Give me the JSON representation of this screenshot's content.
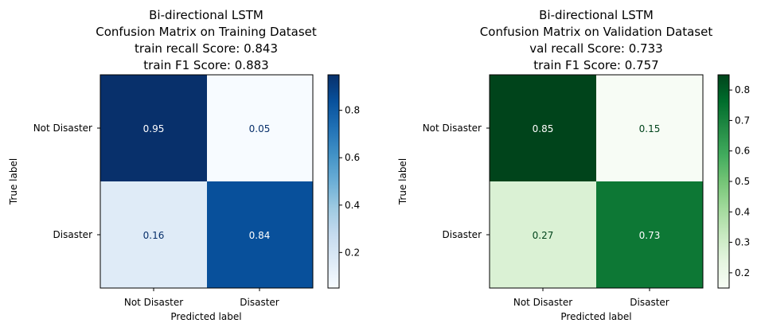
{
  "chart_data": [
    {
      "type": "heatmap",
      "title": [
        "Bi-directional LSTM",
        "Confusion Matrix on Training Dataset",
        "train recall Score: 0.843",
        "train F1 Score: 0.883"
      ],
      "xlabel": "Predicted label",
      "ylabel": "True label",
      "x_categories": [
        "Not Disaster",
        "Disaster"
      ],
      "y_categories": [
        "Not Disaster",
        "Disaster"
      ],
      "values": [
        [
          0.95,
          0.05
        ],
        [
          0.16,
          0.84
        ]
      ],
      "cell_labels": [
        [
          "0.95",
          "0.05"
        ],
        [
          "0.16",
          "0.84"
        ]
      ],
      "colormap": "Blues",
      "colorbar": {
        "range": [
          0.05,
          0.95
        ],
        "ticks": [
          0.2,
          0.4,
          0.6,
          0.8
        ],
        "tick_labels": [
          "0.2",
          "0.4",
          "0.6",
          "0.8"
        ]
      }
    },
    {
      "type": "heatmap",
      "title": [
        "Bi-directional LSTM",
        "Confusion Matrix on Validation Dataset",
        "val recall Score: 0.733",
        "train F1 Score: 0.757"
      ],
      "xlabel": "Predicted label",
      "ylabel": "True label",
      "x_categories": [
        "Not Disaster",
        "Disaster"
      ],
      "y_categories": [
        "Not Disaster",
        "Disaster"
      ],
      "values": [
        [
          0.85,
          0.15
        ],
        [
          0.27,
          0.73
        ]
      ],
      "cell_labels": [
        [
          "0.85",
          "0.15"
        ],
        [
          "0.27",
          "0.73"
        ]
      ],
      "colormap": "Greens",
      "colorbar": {
        "range": [
          0.15,
          0.85
        ],
        "ticks": [
          0.2,
          0.3,
          0.4,
          0.5,
          0.6,
          0.7,
          0.8
        ],
        "tick_labels": [
          "0.2",
          "0.3",
          "0.4",
          "0.5",
          "0.6",
          "0.7",
          "0.8"
        ]
      }
    }
  ]
}
